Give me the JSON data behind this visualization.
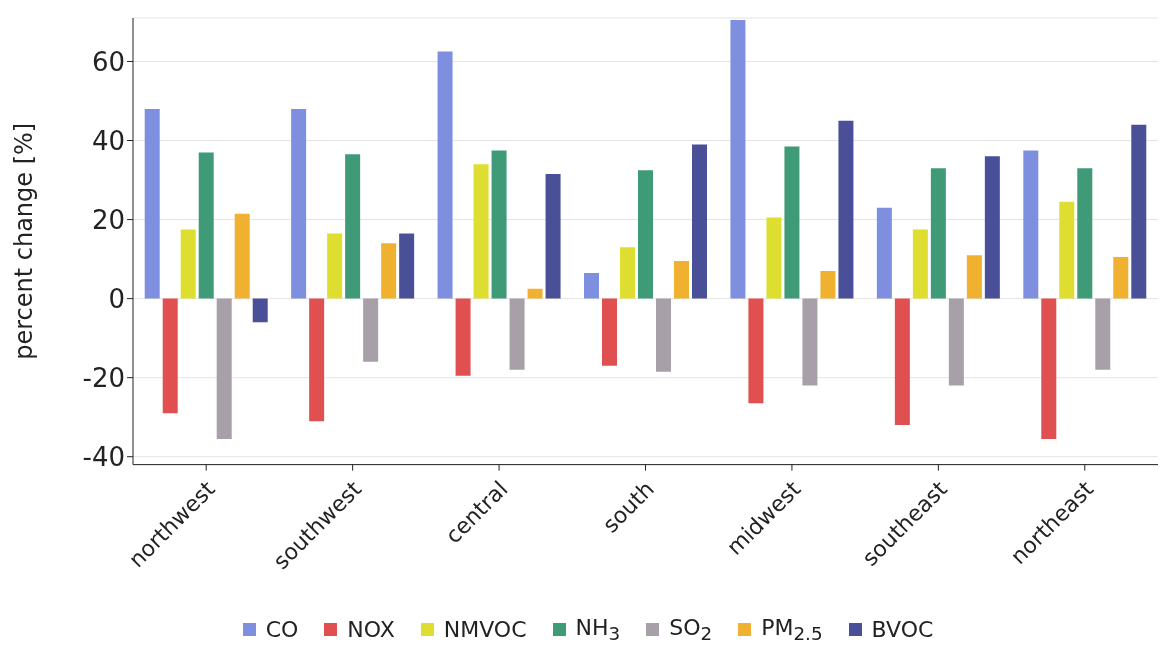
{
  "chart_data": {
    "type": "bar",
    "ylabel": "percent change [%]",
    "categories": [
      "northwest",
      "southwest",
      "central",
      "south",
      "midwest",
      "southeast",
      "northeast"
    ],
    "series": [
      {
        "name": "CO",
        "color": "#7f8fdf",
        "values": [
          48,
          48,
          62.5,
          6.5,
          70.5,
          23,
          37.5
        ]
      },
      {
        "name": "NOX",
        "color": "#e05050",
        "values": [
          -29,
          -31,
          -19.5,
          -17,
          -26.5,
          -32,
          -35.5
        ]
      },
      {
        "name": "NMVOC",
        "color": "#dede30",
        "values": [
          17.5,
          16.5,
          34,
          13,
          20.5,
          17.5,
          24.5
        ]
      },
      {
        "name": "NH$_{3}$",
        "color": "#3f9a78",
        "values": [
          37,
          36.5,
          37.5,
          32.5,
          38.5,
          33,
          33
        ]
      },
      {
        "name": "SO$_{2}$",
        "color": "#a8a0a8",
        "values": [
          -35.5,
          -16,
          -18,
          -18.5,
          -22,
          -22,
          -18
        ]
      },
      {
        "name": "PM$_{2.5}$",
        "color": "#f0b030",
        "values": [
          21.5,
          14,
          2.5,
          9.5,
          7,
          11,
          10.5
        ]
      },
      {
        "name": "BVOC",
        "color": "#4a5098",
        "values": [
          -6,
          16.5,
          31.5,
          39,
          45,
          36,
          44
        ]
      }
    ],
    "ylim": [
      -42,
      71
    ],
    "yticks": [
      -40,
      -20,
      0,
      20,
      40,
      60
    ],
    "grid": "y",
    "legend": "bottom"
  }
}
